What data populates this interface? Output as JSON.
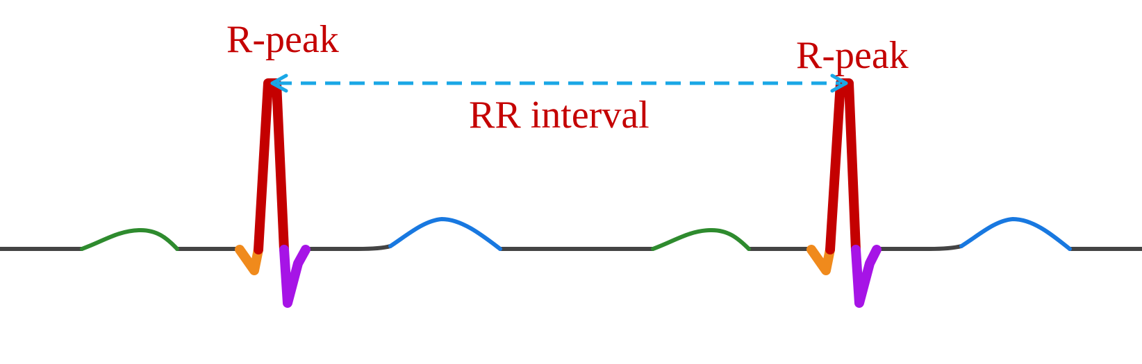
{
  "labels": {
    "r_peak_left": "R-peak",
    "r_peak_right": "R-peak",
    "rr_interval": "RR interval"
  },
  "colors": {
    "baseline": "#444444",
    "p_wave": "#2e8b2e",
    "q_wave": "#f08a1c",
    "r_wave": "#c40000",
    "s_wave": "#a614e6",
    "t_wave": "#1878e0",
    "rr_arrow": "#1aa7e6",
    "label_text": "#c40000"
  }
}
